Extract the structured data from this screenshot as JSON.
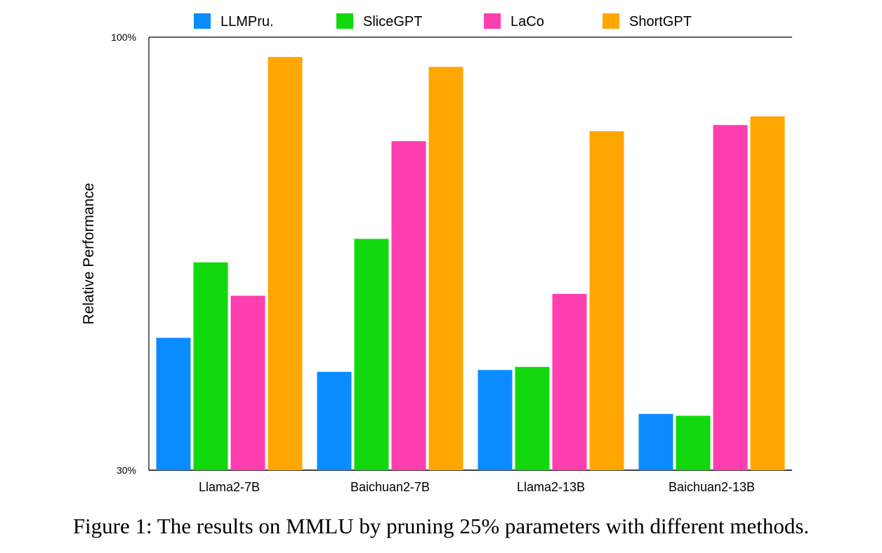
{
  "chart_data": {
    "type": "bar",
    "categories": [
      "Llama2-7B",
      "Baichuan2-7B",
      "Llama2-13B",
      "Baichuan2-13B"
    ],
    "series": [
      {
        "name": "LLMPru.",
        "color": "#0a8cff",
        "values": [
          0.514,
          0.459,
          0.462,
          0.391
        ]
      },
      {
        "name": "SliceGPT",
        "color": "#11d90e",
        "values": [
          0.636,
          0.674,
          0.467,
          0.388
        ]
      },
      {
        "name": "LaCo",
        "color": "#ff3eb0",
        "values": [
          0.582,
          0.832,
          0.585,
          0.858
        ]
      },
      {
        "name": "ShortGPT",
        "color": "#ffa601",
        "values": [
          0.968,
          0.952,
          0.848,
          0.872
        ]
      }
    ],
    "ylabel": "Relative Performance",
    "xlabel": "",
    "ylim": [
      0.3,
      1.0
    ],
    "ytick_labels": [
      "30%",
      "100%"
    ],
    "legend_position": "top-center",
    "grid": false
  },
  "caption": "Figure 1: The results on MMLU by pruning 25% parameters with different methods."
}
